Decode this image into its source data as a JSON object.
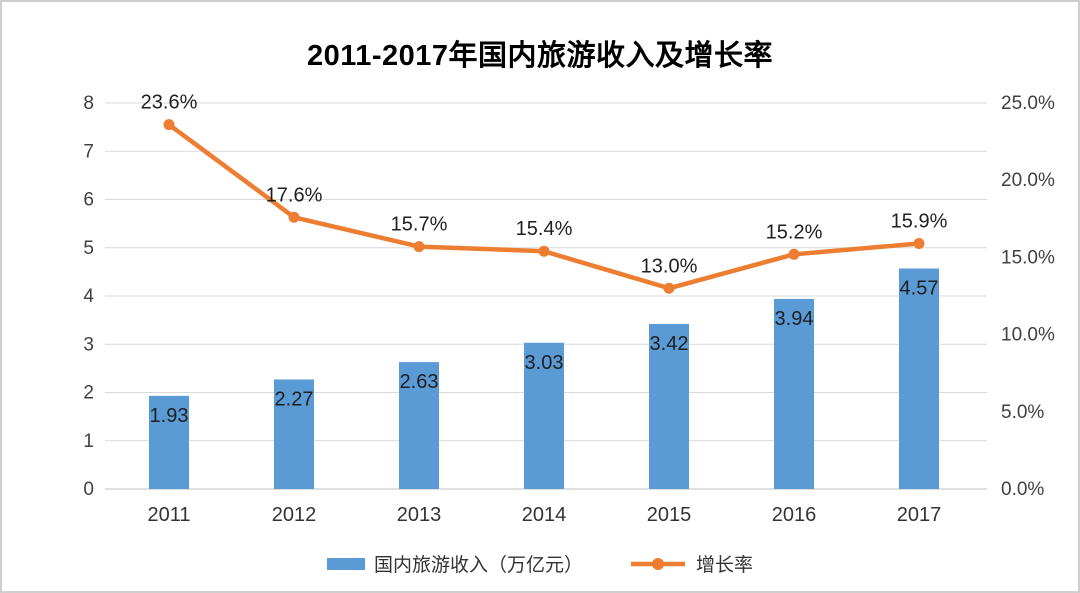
{
  "window": {
    "background": "#ffffff",
    "frame_border_color": "#cfcfcf"
  },
  "chart_data": {
    "type": "bar",
    "subtype": "combo-bar-line-dual-axis",
    "title": "2011-2017年国内旅游收入及增长率",
    "categories": [
      "2011",
      "2012",
      "2013",
      "2014",
      "2015",
      "2016",
      "2017"
    ],
    "series": [
      {
        "name": "国内旅游收入（万亿元）",
        "type": "bar",
        "axis": "left",
        "color": "#5B9BD5",
        "values": [
          1.93,
          2.27,
          2.63,
          3.03,
          3.42,
          3.94,
          4.57
        ],
        "labels": [
          "1.93",
          "2.27",
          "2.63",
          "3.03",
          "3.42",
          "3.94",
          "4.57"
        ]
      },
      {
        "name": "增长率",
        "type": "line",
        "axis": "right",
        "color": "#ED7D31",
        "values": [
          23.6,
          17.6,
          15.7,
          15.4,
          13.0,
          15.2,
          15.9
        ],
        "labels": [
          "23.6%",
          "17.6%",
          "15.7%",
          "15.4%",
          "13.0%",
          "15.2%",
          "15.9%"
        ]
      }
    ],
    "left_axis": {
      "min": 0,
      "max": 8,
      "step": 1,
      "ticks": [
        "0",
        "1",
        "2",
        "3",
        "4",
        "5",
        "6",
        "7",
        "8"
      ]
    },
    "right_axis": {
      "min": 0,
      "max": 25,
      "step": 5,
      "ticks": [
        "0.0%",
        "5.0%",
        "10.0%",
        "15.0%",
        "20.0%",
        "25.0%"
      ]
    },
    "grid": true,
    "gridline_color": "#D9D9D9",
    "baseline_color": "#BFBFBF",
    "axis_text_color": "#404040",
    "data_label_color": "#1f1f1f",
    "legend_position": "bottom"
  }
}
